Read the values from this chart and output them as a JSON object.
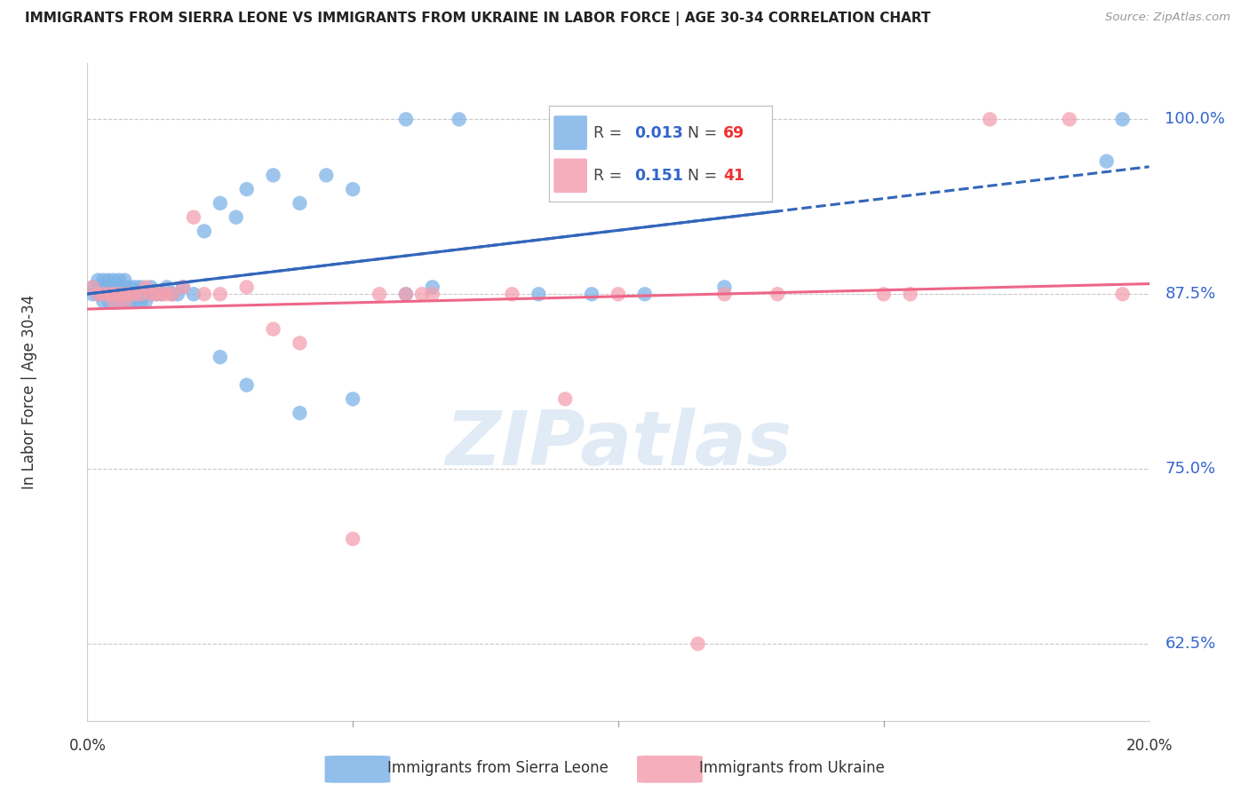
{
  "title": "IMMIGRANTS FROM SIERRA LEONE VS IMMIGRANTS FROM UKRAINE IN LABOR FORCE | AGE 30-34 CORRELATION CHART",
  "source": "Source: ZipAtlas.com",
  "ylabel": "In Labor Force | Age 30-34",
  "ytick_labels": [
    "62.5%",
    "75.0%",
    "87.5%",
    "100.0%"
  ],
  "ytick_values": [
    0.625,
    0.75,
    0.875,
    1.0
  ],
  "xlim": [
    0.0,
    0.2
  ],
  "ylim": [
    0.57,
    1.04
  ],
  "blue_color": "#7EB3E8",
  "pink_color": "#F4A0B0",
  "blue_line_color": "#3366BB",
  "pink_line_color": "#EE6688",
  "watermark": "ZIPatlas",
  "legend_R_blue": "0.013",
  "legend_N_blue": "69",
  "legend_R_pink": "0.151",
  "legend_N_pink": "41",
  "blue_x": [
    0.001,
    0.001,
    0.002,
    0.002,
    0.002,
    0.003,
    0.003,
    0.003,
    0.003,
    0.004,
    0.004,
    0.004,
    0.004,
    0.004,
    0.005,
    0.005,
    0.005,
    0.005,
    0.005,
    0.006,
    0.006,
    0.006,
    0.006,
    0.007,
    0.007,
    0.007,
    0.007,
    0.008,
    0.008,
    0.008,
    0.009,
    0.009,
    0.009,
    0.01,
    0.01,
    0.01,
    0.011,
    0.011,
    0.012,
    0.012,
    0.013,
    0.014,
    0.015,
    0.016,
    0.017,
    0.018,
    0.02,
    0.022,
    0.025,
    0.028,
    0.03,
    0.035,
    0.04,
    0.045,
    0.05,
    0.06,
    0.065,
    0.085,
    0.095,
    0.105,
    0.12,
    0.03,
    0.04,
    0.05,
    0.06,
    0.07,
    0.195,
    0.192,
    0.025
  ],
  "blue_y": [
    0.88,
    0.875,
    0.875,
    0.88,
    0.885,
    0.875,
    0.88,
    0.885,
    0.87,
    0.875,
    0.88,
    0.885,
    0.87,
    0.875,
    0.88,
    0.875,
    0.885,
    0.87,
    0.875,
    0.88,
    0.875,
    0.885,
    0.87,
    0.875,
    0.88,
    0.885,
    0.87,
    0.875,
    0.88,
    0.87,
    0.875,
    0.88,
    0.87,
    0.875,
    0.88,
    0.87,
    0.875,
    0.87,
    0.875,
    0.88,
    0.875,
    0.875,
    0.88,
    0.875,
    0.875,
    0.88,
    0.875,
    0.92,
    0.94,
    0.93,
    0.95,
    0.96,
    0.94,
    0.96,
    0.95,
    0.875,
    0.88,
    0.875,
    0.875,
    0.875,
    0.88,
    0.81,
    0.79,
    0.8,
    1.0,
    1.0,
    1.0,
    0.97,
    0.83
  ],
  "pink_x": [
    0.001,
    0.002,
    0.003,
    0.004,
    0.005,
    0.005,
    0.006,
    0.007,
    0.007,
    0.008,
    0.009,
    0.01,
    0.011,
    0.012,
    0.013,
    0.014,
    0.015,
    0.016,
    0.018,
    0.02,
    0.022,
    0.025,
    0.03,
    0.035,
    0.04,
    0.05,
    0.055,
    0.06,
    0.065,
    0.08,
    0.09,
    0.1,
    0.12,
    0.13,
    0.15,
    0.155,
    0.17,
    0.185,
    0.195,
    0.115,
    0.063
  ],
  "pink_y": [
    0.88,
    0.875,
    0.875,
    0.875,
    0.875,
    0.87,
    0.875,
    0.87,
    0.875,
    0.875,
    0.875,
    0.875,
    0.88,
    0.875,
    0.875,
    0.875,
    0.875,
    0.875,
    0.88,
    0.93,
    0.875,
    0.875,
    0.88,
    0.85,
    0.84,
    0.7,
    0.875,
    0.875,
    0.875,
    0.875,
    0.8,
    0.875,
    0.875,
    0.875,
    0.875,
    0.875,
    1.0,
    1.0,
    0.875,
    0.625,
    0.875
  ]
}
